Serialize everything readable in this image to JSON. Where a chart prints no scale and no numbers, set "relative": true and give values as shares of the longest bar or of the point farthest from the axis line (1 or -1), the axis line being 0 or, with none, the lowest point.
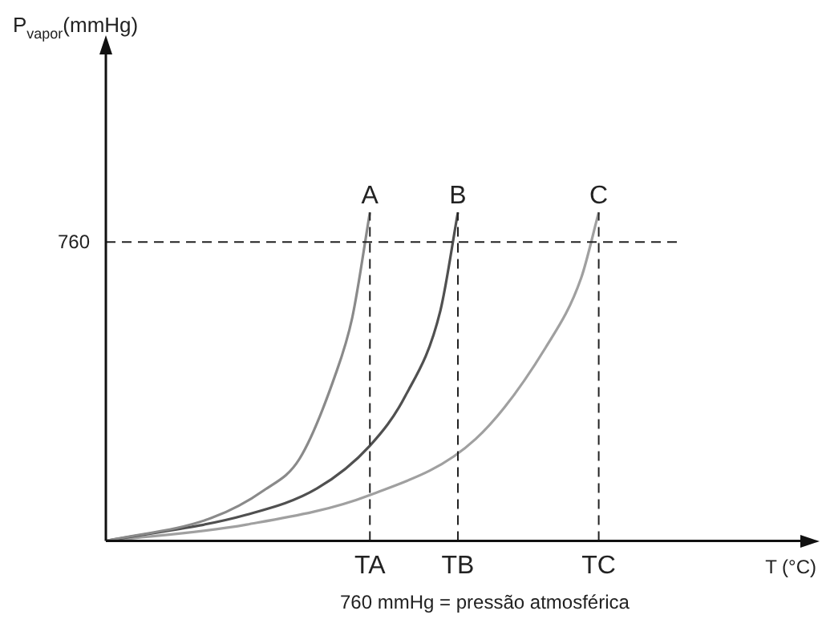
{
  "chart_data": {
    "type": "line",
    "relative": true,
    "xlabel": "T (°C)",
    "categories": [
      null,
      null,
      null,
      null,
      null,
      null,
      null,
      null,
      null,
      null,
      null,
      null,
      null,
      null,
      null,
      "TA",
      null,
      null,
      null,
      null,
      "TB",
      null,
      null,
      null,
      null,
      null,
      null,
      null,
      "TC",
      null,
      null,
      null,
      null,
      null,
      null,
      null,
      null,
      null,
      null,
      null,
      null
    ],
    "series": [
      {
        "name": "A",
        "color": "#8a8a8a",
        "values": [
          0,
          null,
          null,
          null,
          null,
          null,
          0.07,
          null,
          null,
          0.155,
          null,
          0.25,
          null,
          0.5,
          0.68,
          1,
          null,
          null,
          null,
          null,
          null,
          null,
          null,
          null,
          null,
          null,
          null,
          null,
          null,
          null,
          null,
          null,
          null,
          null,
          null,
          null,
          null,
          null,
          null,
          null,
          null
        ]
      },
      {
        "name": "B",
        "color": "#505050",
        "values": [
          0,
          null,
          null,
          null,
          null,
          null,
          null,
          null,
          0.08,
          null,
          null,
          null,
          0.16,
          null,
          null,
          0.29,
          null,
          0.44,
          null,
          0.7,
          1,
          null,
          null,
          null,
          null,
          null,
          null,
          null,
          null,
          null,
          null,
          null,
          null,
          null,
          null,
          null,
          null,
          null,
          null,
          null,
          null
        ]
      },
      {
        "name": "C",
        "color": "#a0a0a0",
        "values": [
          0,
          null,
          null,
          null,
          null,
          null,
          null,
          null,
          0.05,
          null,
          null,
          null,
          null,
          null,
          null,
          0.14,
          null,
          null,
          null,
          null,
          null,
          0.31,
          null,
          null,
          null,
          0.59,
          null,
          0.8,
          1,
          null,
          null,
          null,
          null,
          null,
          null,
          null,
          null,
          null,
          null,
          null,
          null
        ]
      }
    ],
    "ref_lines": [
      {
        "axis": "y",
        "value": 0.91,
        "line_style": "dashed"
      },
      {
        "axis": "x",
        "value": "TA",
        "line_style": "dashed"
      },
      {
        "axis": "x",
        "value": "TB",
        "line_style": "dashed"
      },
      {
        "axis": "x",
        "value": "TC",
        "line_style": "dashed"
      }
    ],
    "annotations": [
      "P$_{vapor}$(mmHg)",
      "760",
      "760 mmHg = pressão atmosférica"
    ],
    "grid": false,
    "legend": false,
    "marker": "none",
    "line_style": "solid"
  }
}
